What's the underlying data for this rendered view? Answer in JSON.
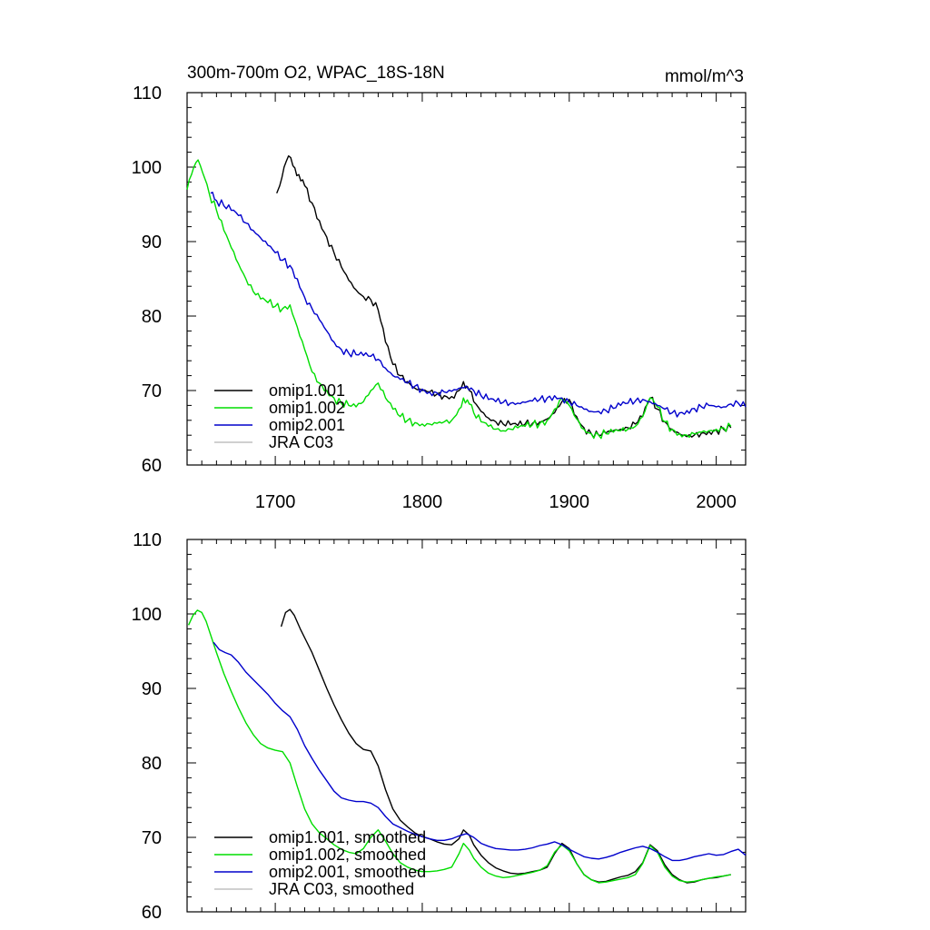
{
  "chart_data": [
    {
      "type": "line",
      "title": "300m-700m O2, WPAC_18S-18N",
      "units": "mmol/m^3",
      "xlabel": "",
      "ylabel": "",
      "xlim": [
        1640,
        2020
      ],
      "ylim": [
        60,
        110
      ],
      "xticks": [
        1700,
        1800,
        1900,
        2000
      ],
      "yticks": [
        60,
        70,
        80,
        90,
        100,
        110
      ],
      "legend_position": "bottom-left",
      "series": [
        {
          "name": "omip1.001",
          "color": "#000000",
          "x": [
            1701,
            1703,
            1706,
            1709,
            1712,
            1716,
            1720,
            1725,
            1730,
            1735,
            1740,
            1745,
            1750,
            1755,
            1760,
            1765,
            1770,
            1775,
            1780,
            1785,
            1790,
            1795,
            1800,
            1805,
            1810,
            1815,
            1820,
            1825,
            1828,
            1832,
            1835,
            1840,
            1845,
            1850,
            1855,
            1860,
            1865,
            1870,
            1875,
            1880,
            1885,
            1890,
            1895,
            1900,
            1905,
            1910,
            1915,
            1920,
            1925,
            1930,
            1935,
            1940,
            1945,
            1950,
            1955,
            1960,
            1965,
            1970,
            1975,
            1980,
            1985,
            1990,
            1995,
            2000,
            2005,
            2010
          ],
          "y": [
            96.5,
            97.5,
            100.0,
            101.5,
            100.2,
            99.0,
            97.5,
            95.2,
            92.8,
            90.6,
            88.5,
            86.6,
            84.8,
            83.5,
            82.6,
            82.2,
            80.8,
            76.5,
            73.5,
            72.0,
            71.2,
            70.3,
            70.0,
            69.8,
            69.5,
            69.3,
            69.2,
            70.0,
            71.2,
            70.0,
            68.5,
            67.2,
            66.3,
            65.8,
            65.5,
            65.4,
            65.3,
            65.5,
            65.6,
            65.8,
            66.2,
            67.0,
            68.5,
            68.8,
            66.5,
            65.0,
            64.2,
            64.0,
            64.3,
            64.6,
            64.8,
            65.0,
            65.5,
            66.5,
            69.0,
            67.5,
            65.8,
            64.8,
            64.2,
            63.8,
            64.0,
            64.3,
            64.5,
            64.7,
            64.8,
            65.0
          ]
        },
        {
          "name": "omip1.002",
          "color": "#00dd00",
          "x": [
            1640,
            1643,
            1646,
            1649,
            1652,
            1655,
            1660,
            1665,
            1670,
            1675,
            1680,
            1685,
            1690,
            1695,
            1700,
            1705,
            1710,
            1715,
            1720,
            1725,
            1730,
            1735,
            1740,
            1745,
            1750,
            1755,
            1760,
            1765,
            1770,
            1775,
            1780,
            1785,
            1790,
            1795,
            1800,
            1805,
            1810,
            1815,
            1820,
            1825,
            1828,
            1832,
            1835,
            1840,
            1845,
            1850,
            1855,
            1860,
            1865,
            1870,
            1875,
            1880,
            1885,
            1890,
            1895,
            1900,
            1905,
            1910,
            1915,
            1920,
            1925,
            1930,
            1935,
            1940,
            1945,
            1950,
            1955,
            1960,
            1965,
            1970,
            1975,
            1980,
            1985,
            1990,
            1995,
            2000,
            2005,
            2010
          ],
          "y": [
            97.0,
            99.0,
            100.6,
            100.2,
            98.5,
            96.5,
            94.2,
            91.5,
            89.2,
            87.0,
            85.0,
            83.3,
            82.3,
            81.8,
            81.3,
            81.0,
            81.5,
            78.5,
            75.5,
            72.5,
            71.0,
            70.0,
            69.0,
            68.3,
            68.0,
            67.8,
            68.5,
            70.0,
            71.0,
            69.0,
            67.5,
            66.5,
            66.0,
            65.7,
            65.5,
            65.5,
            65.6,
            65.8,
            66.0,
            67.5,
            69.0,
            68.2,
            67.0,
            65.8,
            65.2,
            64.8,
            64.6,
            64.8,
            65.0,
            65.2,
            65.4,
            65.6,
            66.0,
            67.5,
            69.0,
            68.0,
            66.2,
            64.8,
            64.2,
            64.0,
            64.2,
            64.4,
            64.6,
            64.8,
            65.2,
            66.5,
            69.0,
            67.8,
            65.8,
            64.8,
            64.2,
            64.0,
            64.2,
            64.4,
            64.6,
            64.8,
            65.0,
            65.2
          ]
        },
        {
          "name": "omip2.001",
          "color": "#0000cc",
          "x": [
            1656,
            1660,
            1665,
            1670,
            1675,
            1680,
            1685,
            1690,
            1695,
            1700,
            1705,
            1710,
            1715,
            1720,
            1725,
            1730,
            1735,
            1740,
            1745,
            1750,
            1755,
            1760,
            1765,
            1770,
            1775,
            1780,
            1785,
            1790,
            1795,
            1800,
            1805,
            1810,
            1815,
            1820,
            1825,
            1830,
            1835,
            1840,
            1845,
            1850,
            1855,
            1860,
            1865,
            1870,
            1875,
            1880,
            1885,
            1890,
            1895,
            1900,
            1905,
            1910,
            1915,
            1920,
            1925,
            1930,
            1935,
            1940,
            1945,
            1950,
            1955,
            1960,
            1965,
            1970,
            1975,
            1980,
            1985,
            1990,
            1995,
            2000,
            2005,
            2010,
            2015,
            2020
          ],
          "y": [
            96.5,
            95.5,
            94.8,
            94.2,
            93.5,
            92.5,
            91.5,
            90.5,
            89.5,
            88.5,
            87.5,
            86.8,
            85.0,
            82.5,
            81.0,
            79.5,
            78.0,
            76.5,
            75.5,
            75.0,
            74.8,
            74.7,
            74.6,
            74.2,
            73.0,
            72.0,
            71.5,
            71.0,
            70.6,
            70.2,
            69.8,
            69.7,
            69.8,
            69.9,
            70.3,
            70.6,
            70.0,
            69.3,
            68.8,
            68.5,
            68.4,
            68.3,
            68.3,
            68.4,
            68.6,
            68.8,
            69.0,
            69.3,
            69.0,
            68.5,
            68.0,
            67.5,
            67.2,
            67.2,
            67.3,
            67.6,
            68.0,
            68.3,
            68.6,
            68.8,
            68.5,
            68.0,
            67.5,
            67.0,
            67.0,
            67.3,
            67.6,
            67.8,
            68.0,
            67.8,
            67.8,
            68.2,
            68.3,
            67.8
          ]
        },
        {
          "name": "JRA C03",
          "color": "#c0c0c0",
          "x": [],
          "y": []
        }
      ]
    },
    {
      "type": "line",
      "title": "",
      "xlabel": "",
      "ylabel": "",
      "xlim": [
        1640,
        2020
      ],
      "ylim": [
        60,
        110
      ],
      "xticks": [
        1700,
        1800,
        1900,
        2000
      ],
      "yticks": [
        60,
        70,
        80,
        90,
        100,
        110
      ],
      "legend_position": "bottom-left",
      "series": [
        {
          "name": "omip1.001, smoothed",
          "color": "#000000",
          "x": [
            1704,
            1707,
            1710,
            1713,
            1717,
            1721,
            1725,
            1730,
            1735,
            1740,
            1745,
            1750,
            1755,
            1760,
            1765,
            1770,
            1775,
            1780,
            1785,
            1790,
            1795,
            1800,
            1805,
            1810,
            1815,
            1820,
            1825,
            1828,
            1832,
            1835,
            1840,
            1845,
            1850,
            1855,
            1860,
            1865,
            1870,
            1875,
            1880,
            1885,
            1890,
            1895,
            1900,
            1905,
            1910,
            1915,
            1920,
            1925,
            1930,
            1935,
            1940,
            1945,
            1950,
            1955,
            1960,
            1965,
            1970,
            1975,
            1980,
            1985,
            1990,
            1995,
            2000,
            2005,
            2010
          ],
          "y": [
            98.3,
            100.2,
            100.6,
            99.8,
            98.0,
            96.4,
            94.8,
            92.4,
            90.0,
            87.8,
            85.8,
            84.0,
            82.6,
            81.8,
            81.6,
            79.6,
            76.4,
            73.8,
            72.3,
            71.4,
            70.6,
            70.1,
            69.8,
            69.4,
            69.1,
            69.0,
            69.8,
            71.0,
            70.3,
            69.0,
            67.6,
            66.6,
            65.9,
            65.5,
            65.2,
            65.1,
            65.2,
            65.4,
            65.6,
            66.0,
            67.8,
            69.2,
            68.5,
            66.5,
            65.0,
            64.3,
            64.0,
            64.1,
            64.4,
            64.7,
            64.9,
            65.4,
            66.6,
            69.0,
            68.2,
            66.3,
            65.0,
            64.3,
            63.9,
            64.0,
            64.3,
            64.5,
            64.6,
            64.8,
            65.0
          ]
        },
        {
          "name": "omip1.002, smoothed",
          "color": "#00dd00",
          "x": [
            1641,
            1644,
            1647,
            1650,
            1653,
            1656,
            1660,
            1665,
            1670,
            1675,
            1680,
            1685,
            1690,
            1695,
            1700,
            1705,
            1710,
            1715,
            1720,
            1725,
            1730,
            1735,
            1740,
            1745,
            1750,
            1755,
            1760,
            1765,
            1770,
            1775,
            1780,
            1785,
            1790,
            1795,
            1800,
            1805,
            1810,
            1815,
            1820,
            1825,
            1828,
            1832,
            1835,
            1840,
            1845,
            1850,
            1855,
            1860,
            1865,
            1870,
            1875,
            1880,
            1885,
            1890,
            1895,
            1900,
            1905,
            1910,
            1915,
            1920,
            1925,
            1930,
            1935,
            1940,
            1945,
            1950,
            1955,
            1960,
            1965,
            1970,
            1975,
            1980,
            1985,
            1990,
            1995,
            2000,
            2005,
            2010
          ],
          "y": [
            98.5,
            99.8,
            100.5,
            100.2,
            99.0,
            97.2,
            94.8,
            92.0,
            89.6,
            87.4,
            85.4,
            83.8,
            82.6,
            82.0,
            81.7,
            81.5,
            80.0,
            76.8,
            73.8,
            71.8,
            70.6,
            69.8,
            69.0,
            68.4,
            68.0,
            67.8,
            68.5,
            70.0,
            71.0,
            69.5,
            67.8,
            66.6,
            66.0,
            65.6,
            65.4,
            65.4,
            65.5,
            65.7,
            66.0,
            67.8,
            69.2,
            68.3,
            67.2,
            66.0,
            65.2,
            64.8,
            64.6,
            64.7,
            64.9,
            65.1,
            65.3,
            65.6,
            66.2,
            68.0,
            69.0,
            68.2,
            66.5,
            65.0,
            64.3,
            63.9,
            64.0,
            64.2,
            64.4,
            64.6,
            65.0,
            66.5,
            68.9,
            68.0,
            66.0,
            64.8,
            64.2,
            64.0,
            64.1,
            64.3,
            64.5,
            64.7,
            64.8,
            65.0
          ]
        },
        {
          "name": "omip2.001, smoothed",
          "color": "#0000cc",
          "x": [
            1658,
            1662,
            1666,
            1670,
            1675,
            1680,
            1685,
            1690,
            1695,
            1700,
            1705,
            1710,
            1715,
            1720,
            1725,
            1730,
            1735,
            1740,
            1745,
            1750,
            1755,
            1760,
            1765,
            1770,
            1775,
            1780,
            1785,
            1790,
            1795,
            1800,
            1805,
            1810,
            1815,
            1820,
            1825,
            1830,
            1835,
            1840,
            1845,
            1850,
            1855,
            1860,
            1865,
            1870,
            1875,
            1880,
            1885,
            1890,
            1895,
            1900,
            1905,
            1910,
            1915,
            1920,
            1925,
            1930,
            1935,
            1940,
            1945,
            1950,
            1955,
            1960,
            1965,
            1970,
            1975,
            1980,
            1985,
            1990,
            1995,
            2000,
            2005,
            2010,
            2015,
            2020
          ],
          "y": [
            96.2,
            95.2,
            94.8,
            94.5,
            93.5,
            92.2,
            91.2,
            90.2,
            89.2,
            88.0,
            87.0,
            86.2,
            84.5,
            82.3,
            80.6,
            79.0,
            77.6,
            76.2,
            75.3,
            75.0,
            74.8,
            74.8,
            74.6,
            74.0,
            72.8,
            71.8,
            71.3,
            70.8,
            70.4,
            70.1,
            69.8,
            69.6,
            69.6,
            69.8,
            70.2,
            70.5,
            70.0,
            69.2,
            68.8,
            68.5,
            68.4,
            68.3,
            68.3,
            68.4,
            68.6,
            68.9,
            69.1,
            69.4,
            69.0,
            68.4,
            67.9,
            67.4,
            67.2,
            67.1,
            67.3,
            67.6,
            68.0,
            68.3,
            68.6,
            68.8,
            68.5,
            68.0,
            67.4,
            66.9,
            66.9,
            67.1,
            67.4,
            67.6,
            67.8,
            67.6,
            67.7,
            68.1,
            68.4,
            67.6
          ]
        },
        {
          "name": "JRA C03, smoothed",
          "color": "#c0c0c0",
          "x": [],
          "y": []
        }
      ]
    }
  ]
}
